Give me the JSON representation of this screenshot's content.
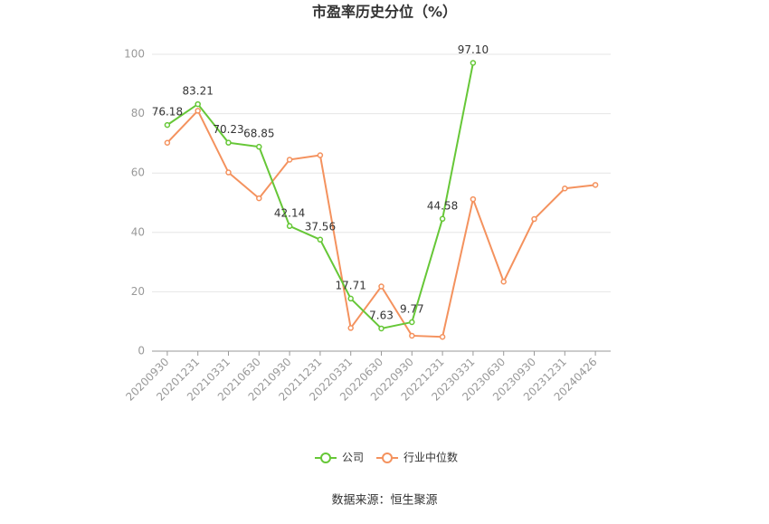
{
  "chart_data": {
    "type": "line",
    "title": "市盈率历史分位（%）",
    "categories": [
      "20200930",
      "20201231",
      "20210331",
      "20210630",
      "20210930",
      "20211231",
      "20220331",
      "20220630",
      "20220930",
      "20221231",
      "20230331",
      "20230630",
      "20230930",
      "20231231",
      "20240426"
    ],
    "series": [
      {
        "name": "公司",
        "color": "#66c737",
        "values": [
          76.18,
          83.21,
          70.23,
          68.85,
          42.14,
          37.56,
          17.71,
          7.63,
          9.77,
          44.58,
          97.1,
          null,
          null,
          null,
          null
        ],
        "value_labels": [
          "76.18",
          "83.21",
          "70.23",
          "68.85",
          "42.14",
          "37.56",
          "17.71",
          "7.63",
          "9.77",
          "44.58",
          "97.10",
          null,
          null,
          null,
          null
        ]
      },
      {
        "name": "行业中位数",
        "color": "#f4925e",
        "values": [
          70.2,
          81,
          60.2,
          51.5,
          64.5,
          66,
          7.8,
          21.8,
          5.2,
          4.8,
          51.2,
          23.4,
          44.5,
          54.8,
          56
        ]
      }
    ],
    "ylim": [
      0,
      100
    ],
    "yticks": [
      0,
      20,
      40,
      60,
      80,
      100
    ],
    "grid": true,
    "legend": "bottom",
    "source": "数据来源：恒生聚源"
  }
}
